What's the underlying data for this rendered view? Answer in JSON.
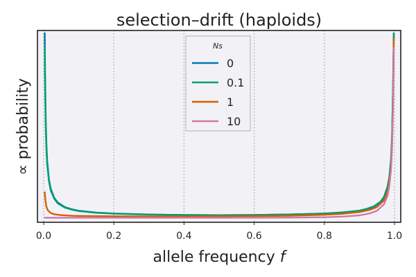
{
  "chart_data": {
    "type": "line",
    "title": "selection–drift (haploids)",
    "xlabel": "allele frequency ",
    "xlabel_var": "f",
    "ylabel": "∝ probability",
    "xlim": [
      0,
      1
    ],
    "ylim": [
      0,
      1
    ],
    "xticks": [
      "0.0",
      "0.2",
      "0.4",
      "0.6",
      "0.8",
      "1.0"
    ],
    "yticks_shown": false,
    "grid": "vertical dotted",
    "legend": {
      "title": "Ns",
      "placement": "top-center",
      "entries": [
        "0",
        "0.1",
        "1",
        "10"
      ]
    },
    "series": [
      {
        "name": "0",
        "color": "#0072b2",
        "x": [
          0.003,
          0.004,
          0.006,
          0.008,
          0.01,
          0.015,
          0.02,
          0.03,
          0.04,
          0.06,
          0.08,
          0.1,
          0.15,
          0.2,
          0.3,
          0.4,
          0.5,
          0.6,
          0.7,
          0.8,
          0.85,
          0.9,
          0.92,
          0.94,
          0.96,
          0.97,
          0.98,
          0.985,
          0.99,
          0.993,
          0.996,
          0.998
        ],
        "y": [
          1.0,
          0.78,
          0.52,
          0.39,
          0.31,
          0.21,
          0.16,
          0.11,
          0.085,
          0.06,
          0.048,
          0.04,
          0.03,
          0.025,
          0.02,
          0.017,
          0.016,
          0.017,
          0.02,
          0.025,
          0.03,
          0.04,
          0.048,
          0.06,
          0.085,
          0.11,
          0.16,
          0.21,
          0.31,
          0.43,
          0.72,
          1.0
        ]
      },
      {
        "name": "0.1",
        "color": "#009e73",
        "x": [
          0.003,
          0.004,
          0.006,
          0.008,
          0.01,
          0.015,
          0.02,
          0.03,
          0.04,
          0.06,
          0.08,
          0.1,
          0.15,
          0.2,
          0.3,
          0.4,
          0.5,
          0.6,
          0.7,
          0.8,
          0.85,
          0.9,
          0.92,
          0.94,
          0.96,
          0.97,
          0.98,
          0.985,
          0.99,
          0.993,
          0.996,
          0.998
        ],
        "y": [
          0.93,
          0.72,
          0.48,
          0.36,
          0.29,
          0.2,
          0.15,
          0.105,
          0.08,
          0.057,
          0.046,
          0.038,
          0.029,
          0.024,
          0.019,
          0.017,
          0.016,
          0.017,
          0.02,
          0.025,
          0.031,
          0.041,
          0.05,
          0.063,
          0.089,
          0.115,
          0.17,
          0.22,
          0.32,
          0.45,
          0.74,
          1.0
        ]
      },
      {
        "name": "1",
        "color": "#d55e00",
        "x": [
          0.003,
          0.005,
          0.008,
          0.012,
          0.02,
          0.03,
          0.05,
          0.08,
          0.1,
          0.2,
          0.3,
          0.4,
          0.5,
          0.6,
          0.7,
          0.8,
          0.85,
          0.9,
          0.93,
          0.95,
          0.97,
          0.98,
          0.985,
          0.99,
          0.993,
          0.996,
          0.998
        ],
        "y": [
          0.14,
          0.095,
          0.06,
          0.042,
          0.028,
          0.021,
          0.016,
          0.013,
          0.012,
          0.01,
          0.009,
          0.009,
          0.01,
          0.011,
          0.013,
          0.018,
          0.023,
          0.033,
          0.045,
          0.06,
          0.095,
          0.14,
          0.19,
          0.28,
          0.4,
          0.67,
          0.97
        ]
      },
      {
        "name": "10",
        "color": "#cc79a7",
        "x": [
          0.003,
          0.01,
          0.05,
          0.1,
          0.2,
          0.3,
          0.4,
          0.5,
          0.6,
          0.7,
          0.8,
          0.85,
          0.9,
          0.93,
          0.95,
          0.97,
          0.98,
          0.985,
          0.99,
          0.993,
          0.996,
          0.998
        ],
        "y": [
          0.002,
          0.002,
          0.002,
          0.002,
          0.002,
          0.002,
          0.002,
          0.002,
          0.002,
          0.003,
          0.005,
          0.008,
          0.015,
          0.026,
          0.04,
          0.075,
          0.12,
          0.17,
          0.26,
          0.38,
          0.6,
          0.92
        ]
      }
    ]
  }
}
